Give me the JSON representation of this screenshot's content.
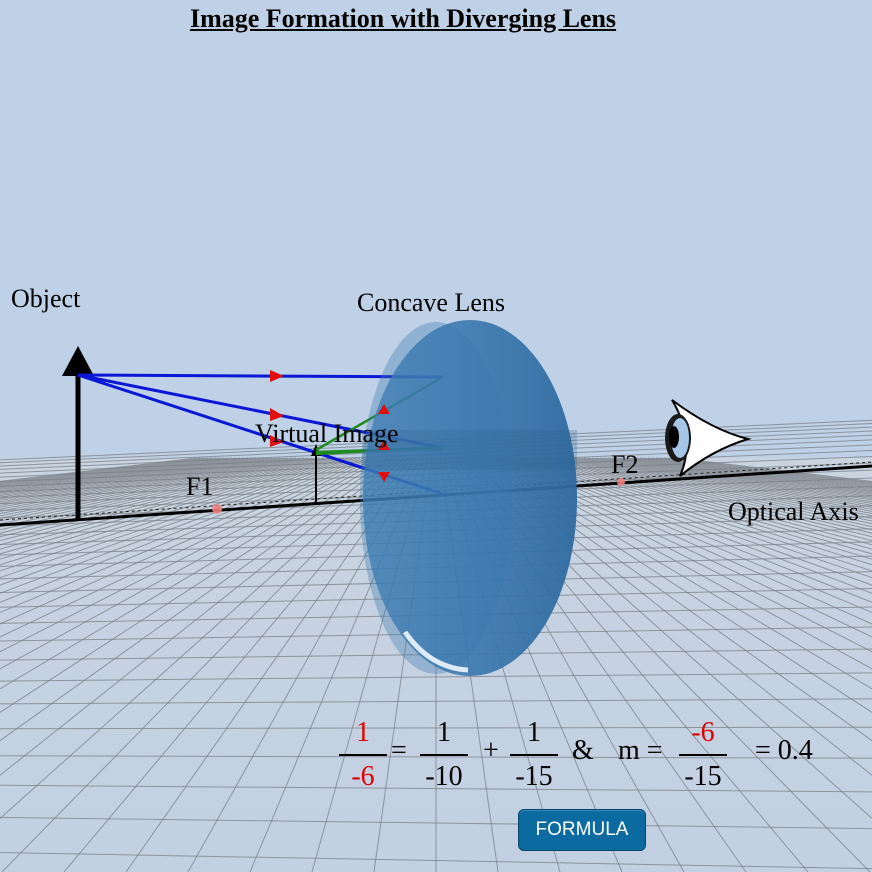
{
  "title": "Image Formation with Diverging Lens",
  "labels": {
    "object": "Object",
    "lens": "Concave Lens",
    "virtual_image": "Virtual Image",
    "f1": "F1",
    "f2": "F2",
    "optical_axis": "Optical Axis"
  },
  "formula": {
    "lhs_num": "1",
    "lhs_den": "-6",
    "eq": "=",
    "t1_num": "1",
    "t1_den": "-10",
    "plus": "+",
    "t2_num": "1",
    "t2_den": "-15",
    "amp": "&",
    "m_label": "m =",
    "m_num": "-6",
    "m_den": "-15",
    "result": "= 0.4"
  },
  "button": {
    "label": "FORMULA"
  },
  "colors": {
    "background": "#bed1e6",
    "ray": "#0a17d6",
    "refracted_ray": "#1f8a1f",
    "arrow_marker": "#e01010",
    "lens": "#3d7fb5",
    "highlight": "#e00000",
    "button": "#0b6aa0"
  },
  "icons": [
    "eye-icon",
    "object-arrow-icon",
    "image-arrow-icon"
  ]
}
